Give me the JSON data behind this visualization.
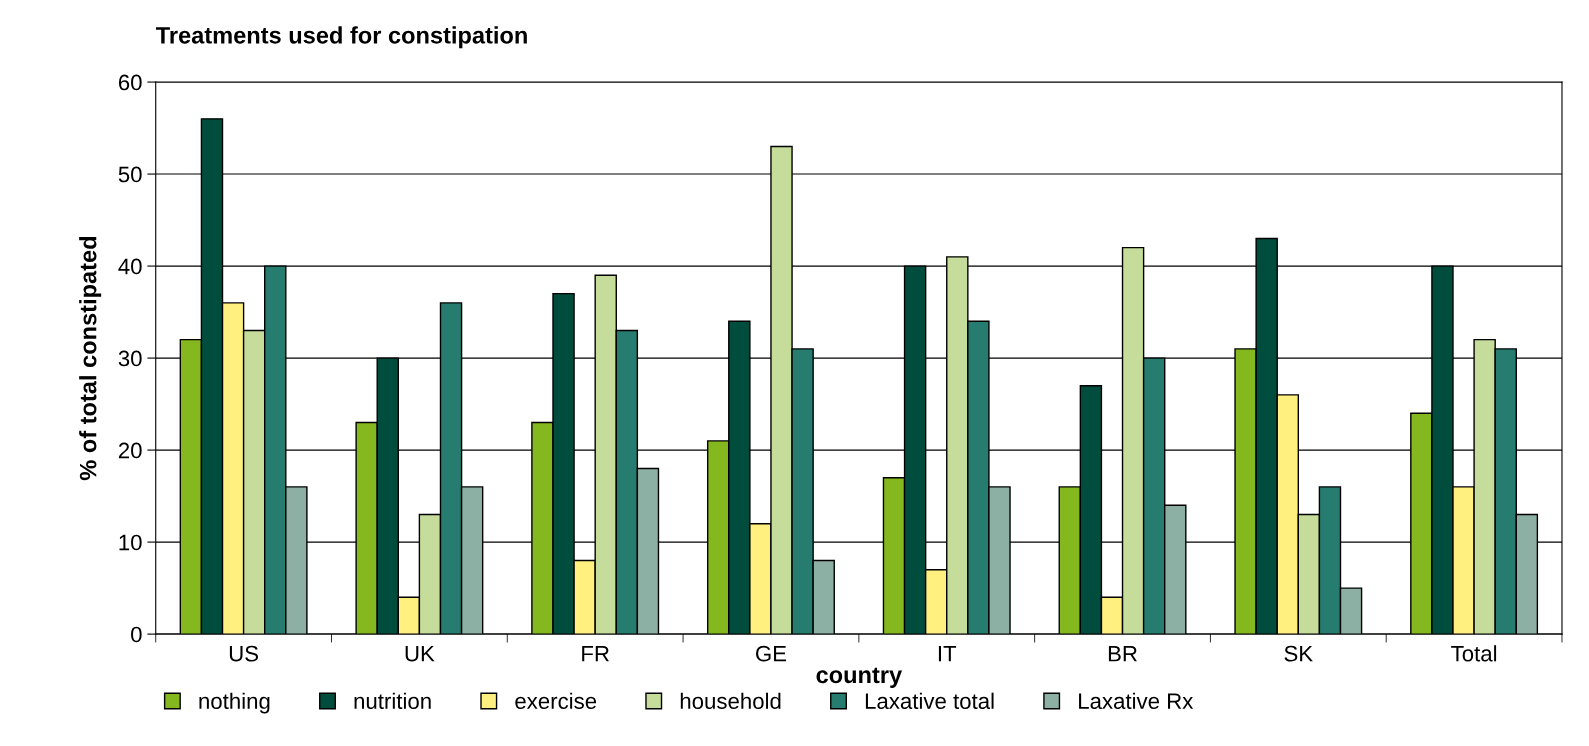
{
  "chart_data": {
    "type": "bar",
    "title": "Treatments used for constipation",
    "xlabel": "country",
    "ylabel": "% of total constipated",
    "categories": [
      "US",
      "UK",
      "FR",
      "GE",
      "IT",
      "BR",
      "SK",
      "Total"
    ],
    "series": [
      {
        "name": "nothing",
        "color": "#84b81e",
        "values": [
          32,
          23,
          23,
          21,
          17,
          16,
          31,
          24
        ]
      },
      {
        "name": "nutrition",
        "color": "#004d3d",
        "values": [
          56,
          30,
          37,
          34,
          40,
          27,
          43,
          40
        ]
      },
      {
        "name": "exercise",
        "color": "#fff07f",
        "values": [
          36,
          4,
          8,
          12,
          7,
          4,
          26,
          16
        ]
      },
      {
        "name": "household",
        "color": "#c5dc9a",
        "values": [
          33,
          13,
          39,
          53,
          41,
          42,
          13,
          32
        ]
      },
      {
        "name": "Laxative total",
        "color": "#267d6f",
        "values": [
          40,
          36,
          33,
          31,
          34,
          30,
          16,
          31
        ]
      },
      {
        "name": "Laxative Rx",
        "color": "#8db0a4",
        "values": [
          16,
          16,
          18,
          8,
          16,
          14,
          5,
          13
        ]
      }
    ],
    "ylim": [
      0,
      60
    ],
    "yticks": [
      0,
      10,
      20,
      30,
      40,
      50,
      60
    ],
    "grid": "y",
    "legend": "bottom"
  }
}
